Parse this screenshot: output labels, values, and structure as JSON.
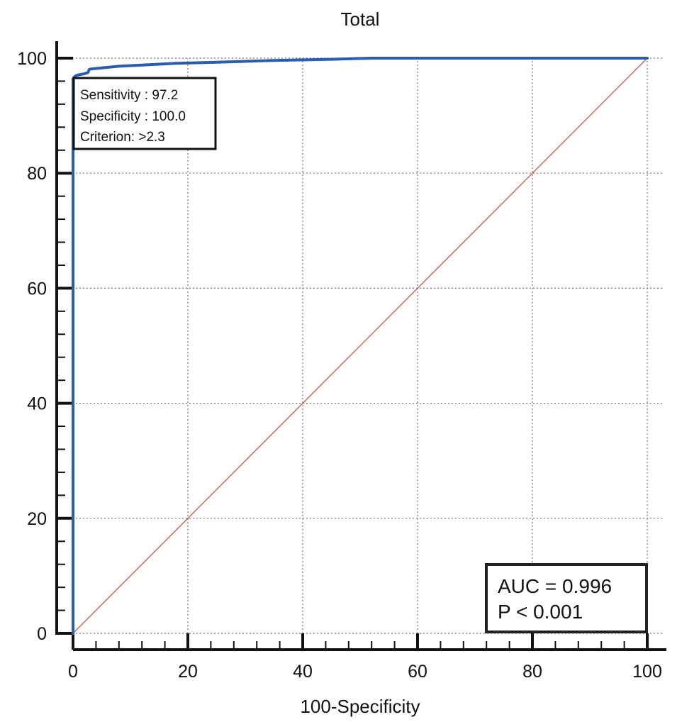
{
  "chart_data": {
    "type": "line",
    "title": "Total",
    "xlabel": "100-Specificity",
    "ylabel": "",
    "xlim": [
      0,
      100
    ],
    "ylim": [
      0,
      100
    ],
    "xticks": [
      "0",
      "20",
      "40",
      "60",
      "80",
      "100"
    ],
    "yticks": [
      "0",
      "20",
      "40",
      "60",
      "80",
      "100"
    ],
    "grid": true,
    "series": [
      {
        "color": "#2a5db0",
        "x": [
          0,
          0,
          0.3,
          0.6,
          1,
          1.5,
          2,
          2.6,
          2.8,
          3,
          5,
          8,
          12,
          18,
          25,
          35,
          45,
          52,
          60,
          70,
          80,
          90,
          100
        ],
        "y": [
          0,
          96.4,
          96.8,
          97.0,
          97.1,
          97.2,
          97.3,
          97.5,
          98.0,
          98.1,
          98.3,
          98.6,
          98.8,
          99.1,
          99.3,
          99.6,
          99.8,
          100,
          100,
          100,
          100,
          100,
          100
        ]
      },
      {
        "color": "#cc5555",
        "x": [
          0,
          100
        ],
        "y": [
          0,
          100
        ]
      }
    ],
    "annotation_box": {
      "lines": [
        "Sensitivity : 97.2",
        "Specificity : 100.0",
        "Criterion: >2.3"
      ]
    },
    "auc_box": {
      "lines": [
        "AUC = 0.996",
        "P < 0.001"
      ]
    }
  }
}
